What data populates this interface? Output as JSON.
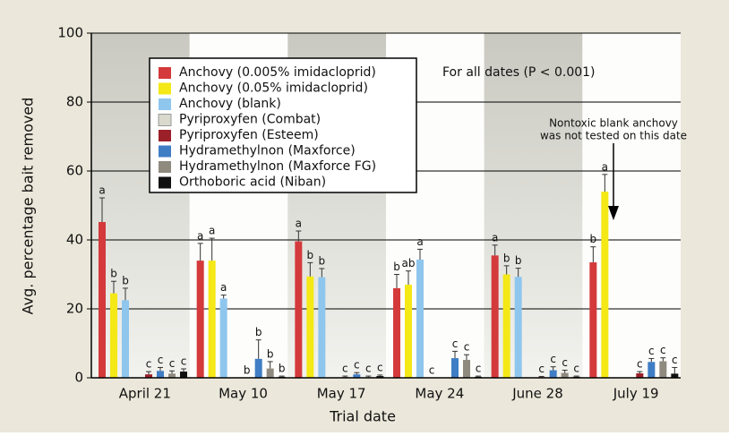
{
  "chart_data": {
    "type": "bar",
    "x_label": "Trial date",
    "y_label": "Avg. percentage bait removed",
    "annotation": "For all dates (P < 0.001)",
    "arrow_note": [
      "Nontoxic blank anchovy",
      "was not tested on this date"
    ],
    "categories": [
      "April 21",
      "May 10",
      "May 17",
      "May 24",
      "June 28",
      "July 19"
    ],
    "ylim": [
      0,
      100
    ],
    "yticks": [
      0,
      20,
      40,
      60,
      80,
      100
    ],
    "grid": true,
    "series": [
      {
        "name": "Anchovy (0.005% imidacloprid)",
        "color": "#d43a3b",
        "values": [
          45.2,
          34,
          39.6,
          26,
          35.5,
          33.5
        ],
        "errors": [
          7,
          5,
          3,
          4,
          3,
          4.5
        ],
        "letters": [
          "a",
          "a",
          "a",
          "b",
          "a",
          "b"
        ]
      },
      {
        "name": "Anchovy (0.05% imidacloprid)",
        "color": "#f4e816",
        "values": [
          24.5,
          34,
          29.4,
          27,
          30,
          54
        ],
        "errors": [
          3.5,
          6.5,
          4,
          4,
          2.5,
          5
        ],
        "letters": [
          "b",
          "a",
          "b",
          "ab",
          "b",
          "a"
        ]
      },
      {
        "name": "Anchovy (blank)",
        "color": "#8fc6ee",
        "values": [
          22.5,
          23,
          29.2,
          34.3,
          29.3,
          null
        ],
        "errors": [
          3.5,
          1,
          2.5,
          3,
          2.5,
          null
        ],
        "letters": [
          "b",
          "a",
          "b",
          "a",
          "b",
          null
        ]
      },
      {
        "name": "Pyriproxyfen (Combat)",
        "color": "#d9d9cd",
        "values": [
          null,
          null,
          null,
          0,
          null,
          null
        ],
        "errors": [
          null,
          null,
          null,
          0,
          null,
          null
        ],
        "letters": [
          null,
          null,
          null,
          "c",
          null,
          null
        ]
      },
      {
        "name": "Pyriproxyfen (Esteem)",
        "color": "#9b2029",
        "values": [
          1.0,
          0,
          0.2,
          null,
          0.2,
          1.3
        ],
        "errors": [
          0.8,
          0,
          0.3,
          null,
          0.2,
          0.5
        ],
        "letters": [
          "c",
          "b",
          "c",
          null,
          "c",
          "c"
        ]
      },
      {
        "name": "Hydramethylnon (Maxforce)",
        "color": "#3f7dc4",
        "values": [
          2.0,
          5.5,
          1.0,
          5.7,
          2.2,
          4.6
        ],
        "errors": [
          1,
          5.5,
          0.5,
          2,
          1,
          1
        ],
        "letters": [
          "c",
          "b",
          "c",
          "c",
          "c",
          "c"
        ]
      },
      {
        "name": "Hydramethylnon (Maxforce FG)",
        "color": "#8f8a7e",
        "values": [
          1.2,
          2.7,
          0.2,
          5.2,
          1.4,
          4.8
        ],
        "errors": [
          0.8,
          2,
          0.3,
          1.5,
          0.8,
          1
        ],
        "letters": [
          "c",
          "b",
          "c",
          "c",
          "c",
          "c"
        ]
      },
      {
        "name": "Orthoboric acid (Niban)",
        "color": "#111111",
        "values": [
          1.8,
          0.3,
          0.5,
          0.3,
          0.3,
          1.2
        ],
        "errors": [
          0.8,
          0.2,
          0.3,
          0.2,
          0.2,
          1.8
        ],
        "letters": [
          "c",
          "b",
          "c",
          "c",
          "c",
          "c"
        ]
      }
    ]
  }
}
